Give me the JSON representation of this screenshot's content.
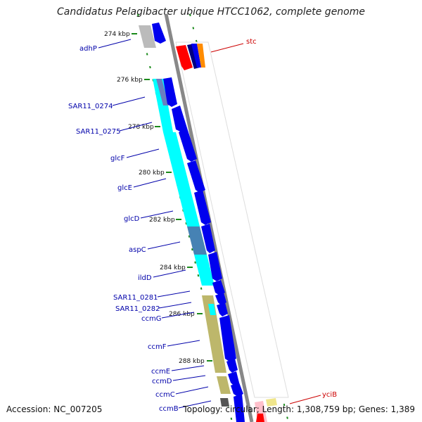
{
  "title": "Candidatus Pelagibacter ubique HTCC1062, complete genome",
  "accession": "Accession: NC_007205",
  "summary": "Topology: circular; Length: 1,308,759 bp; Genes: 1,389",
  "ticks": [
    "274 kbp",
    "276 kbp",
    "278 kbp",
    "280 kbp",
    "282 kbp",
    "284 kbp",
    "286 kbp",
    "288 kbp"
  ],
  "left_labels": [
    "adhP",
    "SAR11_0274",
    "SAR11_0275",
    "glcF",
    "glcE",
    "glcD",
    "aspC",
    "ildD",
    "SAR11_0281",
    "SAR11_0282",
    "ccmG",
    "ccmF",
    "ccmE",
    "ccmD",
    "ccmC",
    "ccmB"
  ],
  "right_labels": [
    "stc",
    "yciB"
  ],
  "colors": {
    "forward_cds": "#0000ee",
    "cog_metabolism": "#00ffff",
    "cog_transport": "#4682b4",
    "cog_membrane": "#bdb76b",
    "cog_unknown": "#bbbbbb",
    "rna_red": "#ff0000",
    "backbone": "#888888",
    "tick_green": "#1a8a1a",
    "label_blue": "#0000aa",
    "label_red": "#cc0000"
  }
}
